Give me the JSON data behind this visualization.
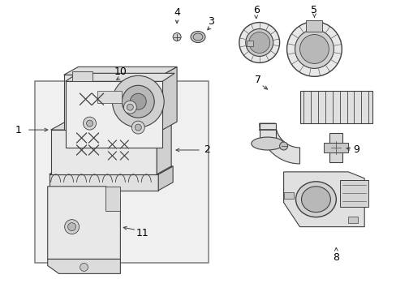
{
  "bg_color": "#ffffff",
  "box_bg": "#eeeeee",
  "lc": "#404040",
  "fc_light": "#f0f0f0",
  "fc_mid": "#d8d8d8",
  "fc_dark": "#c0c0c0",
  "label_color": "#000000",
  "label_fs": 8,
  "fig_w": 4.89,
  "fig_h": 3.6,
  "dpi": 100
}
